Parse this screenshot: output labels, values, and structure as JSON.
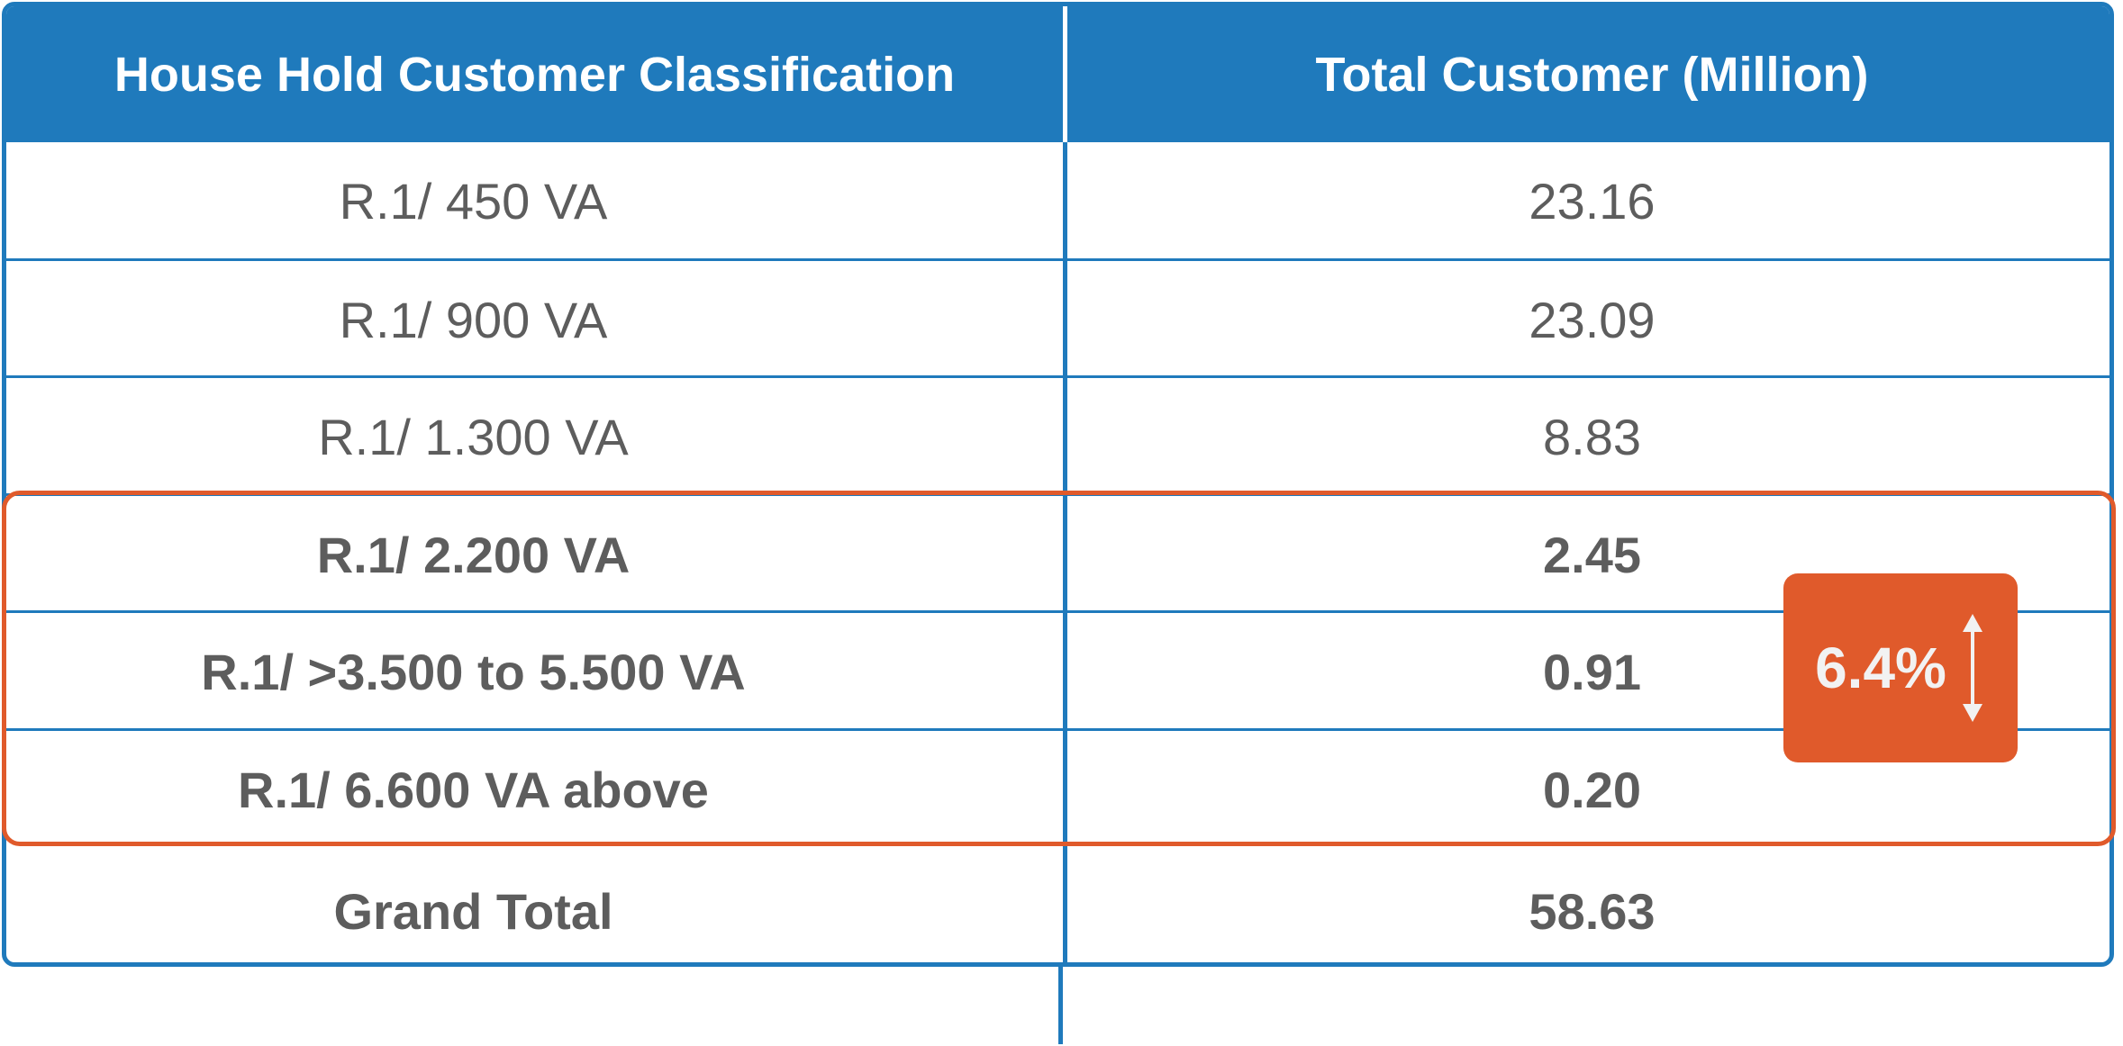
{
  "table": {
    "headers": [
      "House Hold Customer Classification",
      "Total Customer (Million)"
    ],
    "rows": [
      {
        "classification": "R.1/ 450 VA",
        "total": "23.16",
        "bold": false
      },
      {
        "classification": "R.1/ 900 VA",
        "total": "23.09",
        "bold": false
      },
      {
        "classification": "R.1/ 1.300 VA",
        "total": "8.83",
        "bold": false
      },
      {
        "classification": "R.1/ 2.200 VA",
        "total": "2.45",
        "bold": true
      },
      {
        "classification": "R.1/ >3.500 to 5.500 VA",
        "total": "0.91",
        "bold": true
      },
      {
        "classification": "R.1/ 6.600 VA above",
        "total": "0.20",
        "bold": true
      }
    ],
    "grand_total": {
      "label": "Grand Total",
      "value": "58.63"
    }
  },
  "badge": {
    "value": "6.4%",
    "icon": "up-down-arrow-icon"
  },
  "colors": {
    "header_blue": "#1f7abc",
    "highlight_orange": "#e05a2b",
    "text_gray": "#5d5d5d"
  }
}
